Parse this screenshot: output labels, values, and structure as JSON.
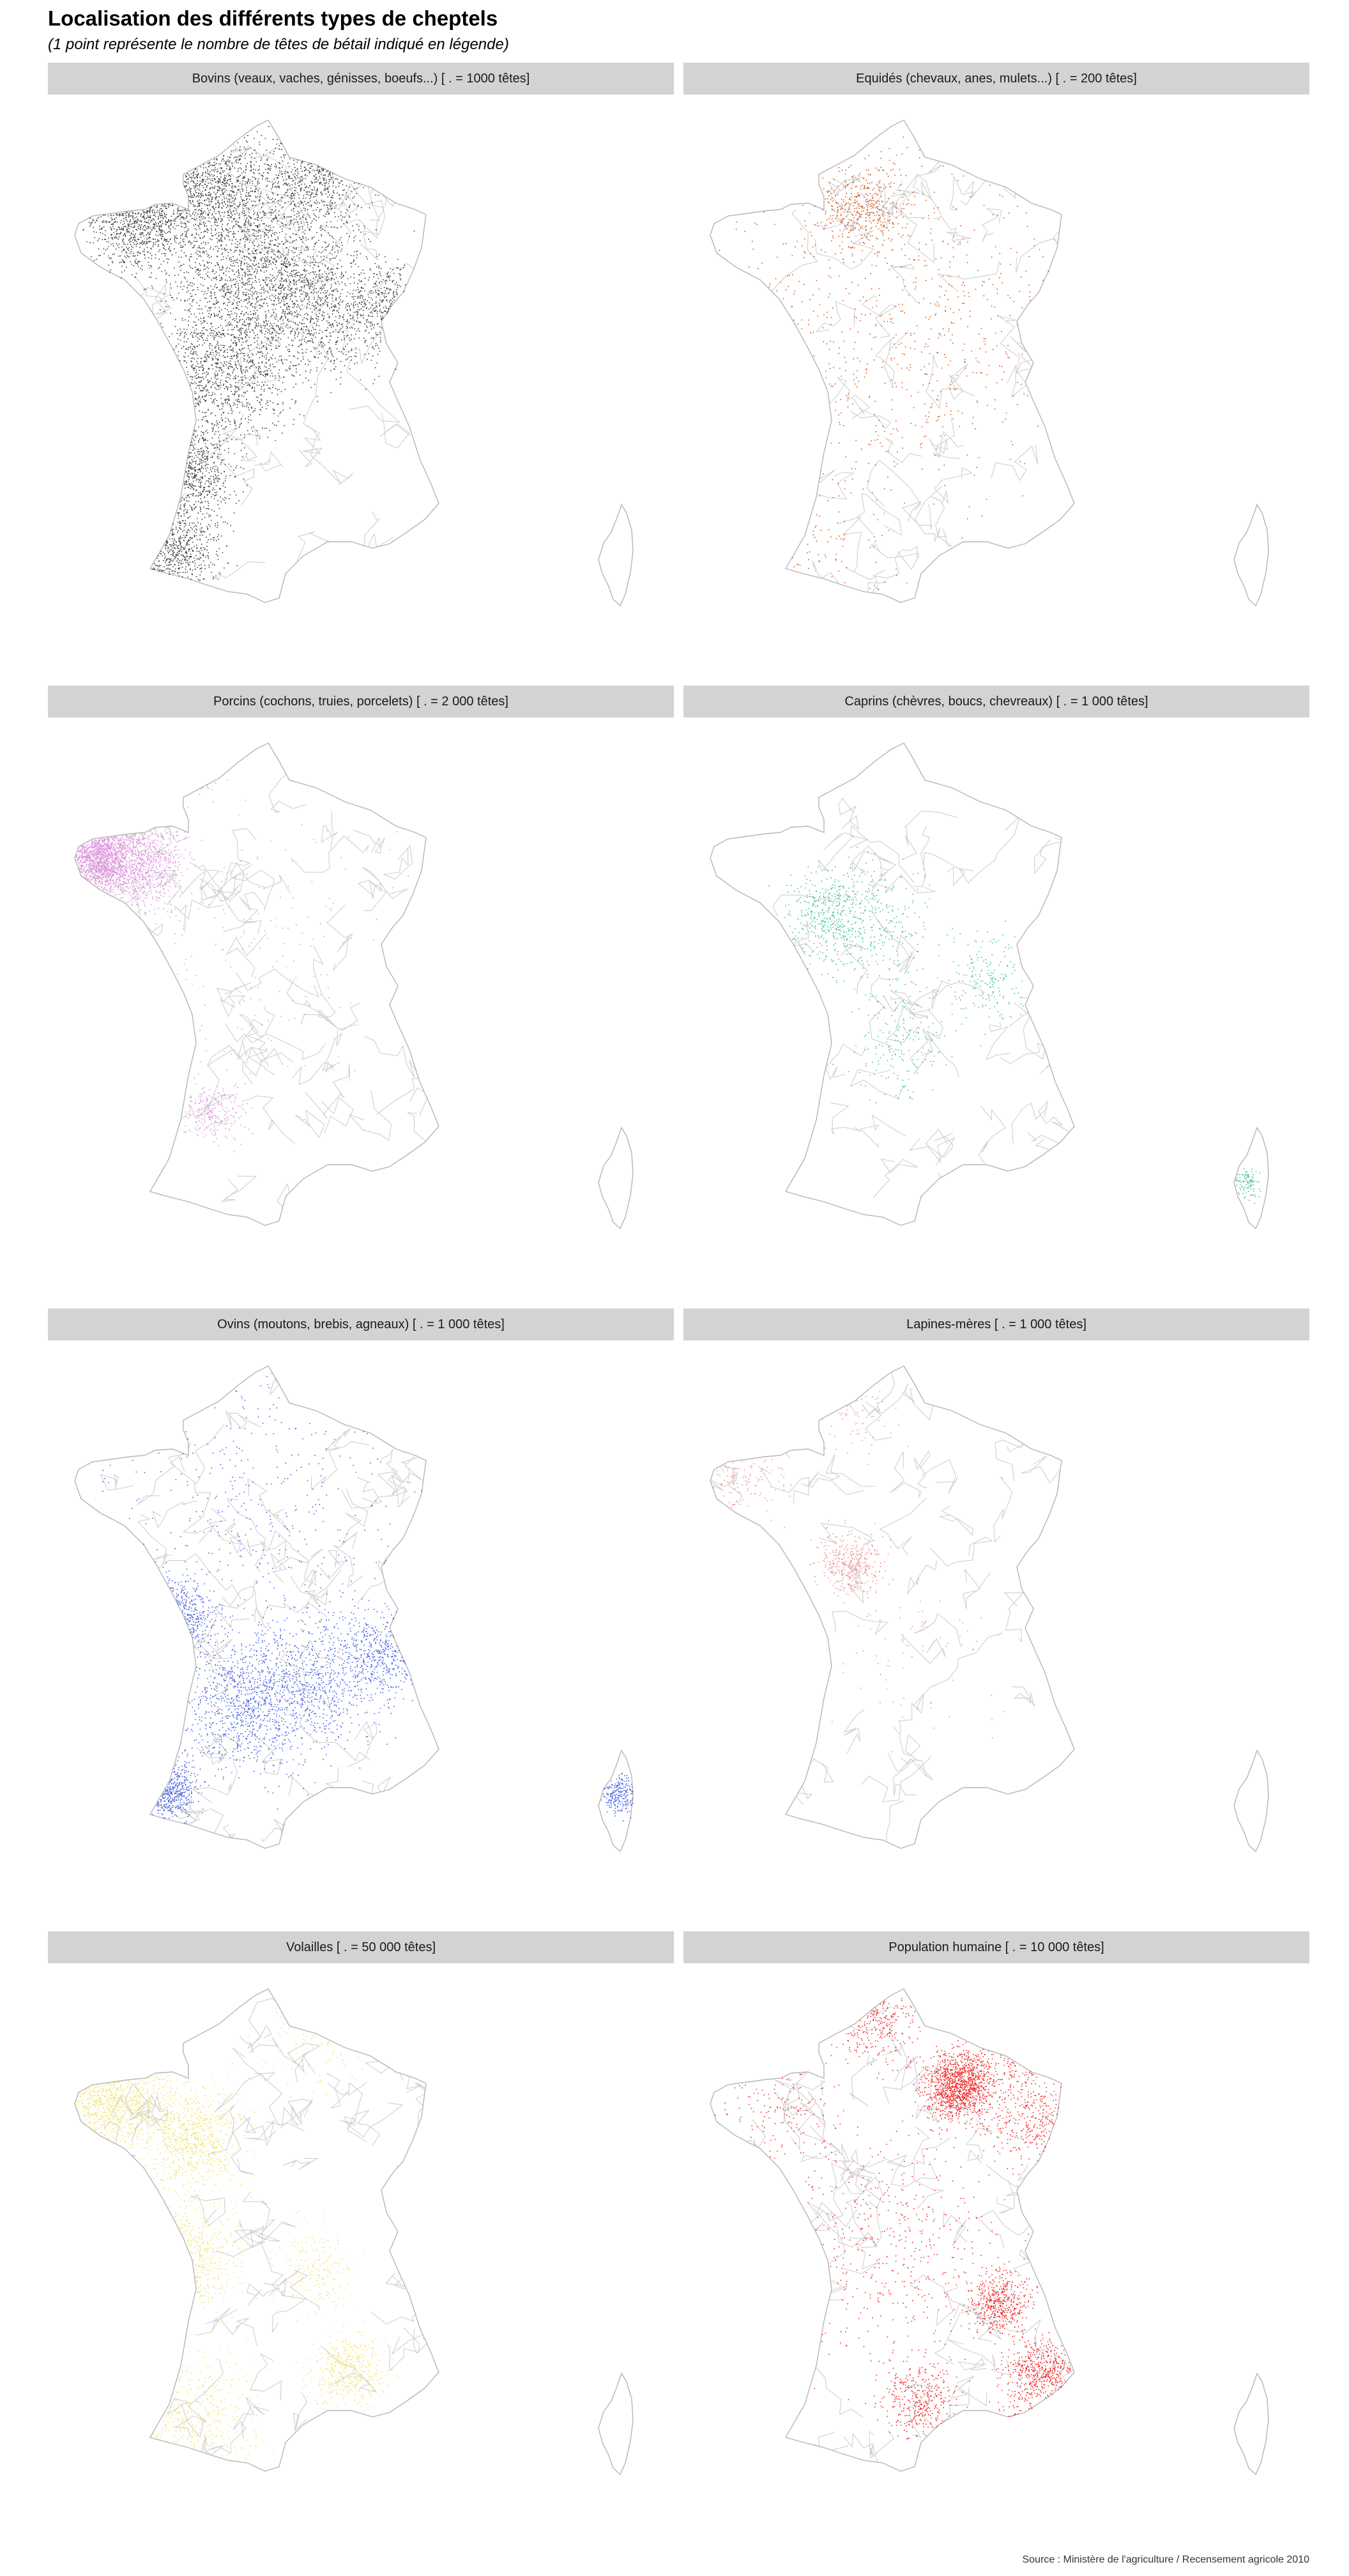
{
  "title": "Localisation des différents types de cheptels",
  "subtitle": "(1 point représente le nombre de têtes de bétail indiqué en légende)",
  "source": "Source : Ministère de l'agriculture / Recensement agricole 2010",
  "panels": [
    {
      "label": "Bovins (veaux, vaches, génisses, boeufs...) [ . = 1000 têtes]",
      "color": "#000000",
      "density": 9000,
      "region": "bovins"
    },
    {
      "label": "Equidés (chevaux, anes, mulets...) [ . = 200 têtes]",
      "color": "#cc4400",
      "density": 1500,
      "region": "equides"
    },
    {
      "label": "Porcins (cochons, truies, porcelets) [ . = 2 000 têtes]",
      "color": "#d88ad8",
      "density": 3500,
      "region": "porcins"
    },
    {
      "label": "Caprins (chèvres, boucs, chevreaux) [ . = 1 000 têtes]",
      "color": "#2eb886",
      "density": 1200,
      "region": "caprins"
    },
    {
      "label": "Ovins (moutons, brebis, agneaux) [ . = 1 000 têtes]",
      "color": "#3050e0",
      "density": 4500,
      "region": "ovins"
    },
    {
      "label": "Lapines-mères [ . = 1 000 têtes]",
      "color": "#f08080",
      "density": 700,
      "region": "lapines"
    },
    {
      "label": "Volailles [ . = 50 000 têtes]",
      "color": "#f0e060",
      "density": 4500,
      "region": "volailles"
    },
    {
      "label": "Population humaine [ . = 10 000 têtes]",
      "color": "#ee1111",
      "density": 4500,
      "region": "population"
    }
  ]
}
